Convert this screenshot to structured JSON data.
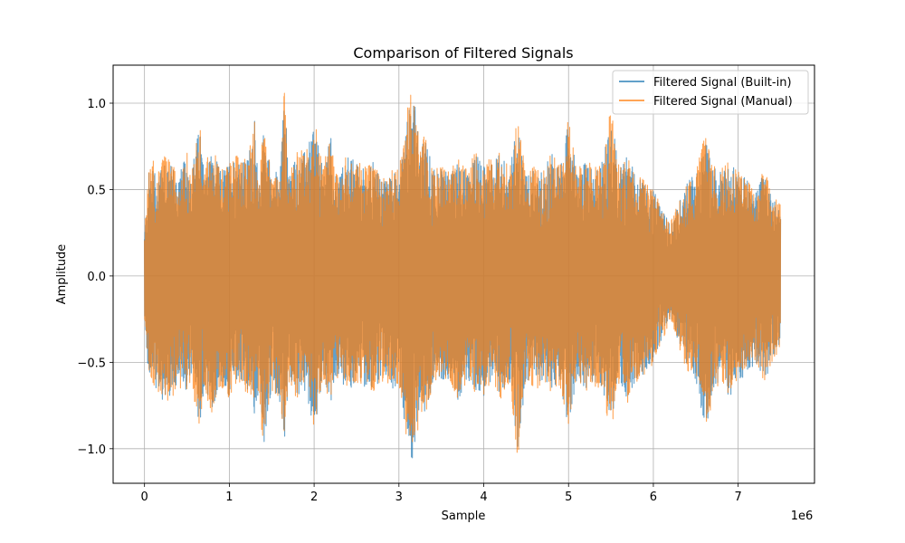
{
  "chart_data": {
    "type": "line",
    "title": "Comparison of Filtered Signals",
    "xlabel": "Sample",
    "ylabel": "Amplitude",
    "x_offset_label": "1e6",
    "xlim": [
      -0.37,
      7.9
    ],
    "ylim": [
      -1.2,
      1.22
    ],
    "x_ticks": [
      0,
      1,
      2,
      3,
      4,
      5,
      6,
      7
    ],
    "x_tick_labels": [
      "0",
      "1",
      "2",
      "3",
      "4",
      "5",
      "6",
      "7"
    ],
    "y_ticks": [
      -1.0,
      -0.5,
      0.0,
      0.5,
      1.0
    ],
    "y_tick_labels": [
      "−1.0",
      "−0.5",
      "0.0",
      "0.5",
      "1.0"
    ],
    "grid": true,
    "legend_position": "top-right",
    "x_range": [
      0,
      7.5
    ],
    "series": [
      {
        "name": "Filtered Signal (Built-in)",
        "color": "#1f77b4",
        "opacity": 0.7,
        "envelope": {
          "x": [
            0,
            0.05,
            0.1,
            0.15,
            0.2,
            0.3,
            0.4,
            0.5,
            0.55,
            0.65,
            0.7,
            0.8,
            0.9,
            1.0,
            1.1,
            1.2,
            1.3,
            1.35,
            1.4,
            1.5,
            1.6,
            1.65,
            1.7,
            1.8,
            1.9,
            2.0,
            2.1,
            2.2,
            2.25,
            2.3,
            2.4,
            2.5,
            2.6,
            2.7,
            2.8,
            2.9,
            3.0,
            3.1,
            3.15,
            3.2,
            3.25,
            3.3,
            3.4,
            3.5,
            3.6,
            3.7,
            3.8,
            3.9,
            4.0,
            4.1,
            4.2,
            4.3,
            4.4,
            4.5,
            4.6,
            4.7,
            4.8,
            4.9,
            5.0,
            5.1,
            5.2,
            5.3,
            5.4,
            5.5,
            5.6,
            5.7,
            5.8,
            5.9,
            6.0,
            6.1,
            6.2,
            6.3,
            6.4,
            6.5,
            6.6,
            6.65,
            6.7,
            6.8,
            6.9,
            7.0,
            7.1,
            7.2,
            7.3,
            7.4,
            7.5
          ],
          "upper": [
            0.25,
            0.6,
            0.66,
            0.55,
            0.72,
            0.66,
            0.58,
            0.7,
            0.6,
            0.88,
            0.66,
            0.73,
            0.6,
            0.66,
            0.72,
            0.65,
            0.9,
            0.5,
            0.88,
            0.6,
            0.6,
            1.09,
            0.62,
            0.7,
            0.72,
            0.9,
            0.62,
            0.83,
            0.6,
            0.6,
            0.7,
            0.66,
            0.62,
            0.66,
            0.55,
            0.6,
            0.62,
            0.95,
            1.09,
            0.98,
            0.7,
            0.8,
            0.66,
            0.62,
            0.6,
            0.66,
            0.6,
            0.7,
            0.66,
            0.66,
            0.72,
            0.6,
            0.9,
            0.6,
            0.62,
            0.6,
            0.72,
            0.62,
            0.9,
            0.6,
            0.66,
            0.62,
            0.66,
            0.96,
            0.62,
            0.72,
            0.6,
            0.56,
            0.5,
            0.38,
            0.3,
            0.42,
            0.55,
            0.6,
            0.78,
            0.78,
            0.62,
            0.62,
            0.66,
            0.6,
            0.56,
            0.48,
            0.62,
            0.46,
            0.4
          ],
          "lower": [
            -0.25,
            -0.6,
            -0.62,
            -0.66,
            -0.72,
            -0.7,
            -0.66,
            -0.66,
            -0.6,
            -0.88,
            -0.66,
            -0.78,
            -0.62,
            -0.7,
            -0.62,
            -0.66,
            -0.8,
            -0.65,
            -1.02,
            -0.66,
            -0.74,
            -0.96,
            -0.6,
            -0.7,
            -0.66,
            -0.9,
            -0.6,
            -0.72,
            -0.6,
            -0.6,
            -0.66,
            -0.62,
            -0.64,
            -0.66,
            -0.6,
            -0.66,
            -0.62,
            -0.96,
            -1.08,
            -0.98,
            -0.74,
            -0.82,
            -0.62,
            -0.6,
            -0.6,
            -0.72,
            -0.6,
            -0.66,
            -0.7,
            -0.6,
            -0.72,
            -0.6,
            -1.03,
            -0.6,
            -0.66,
            -0.6,
            -0.66,
            -0.62,
            -0.88,
            -0.6,
            -0.66,
            -0.62,
            -0.66,
            -0.9,
            -0.6,
            -0.72,
            -0.6,
            -0.56,
            -0.5,
            -0.38,
            -0.24,
            -0.4,
            -0.55,
            -0.6,
            -0.86,
            -0.86,
            -0.66,
            -0.62,
            -0.7,
            -0.6,
            -0.6,
            -0.5,
            -0.62,
            -0.5,
            -0.4
          ]
        }
      },
      {
        "name": "Filtered Signal (Manual)",
        "color": "#ff7f0e",
        "opacity": 0.7,
        "envelope_scale": 1.02
      }
    ]
  }
}
